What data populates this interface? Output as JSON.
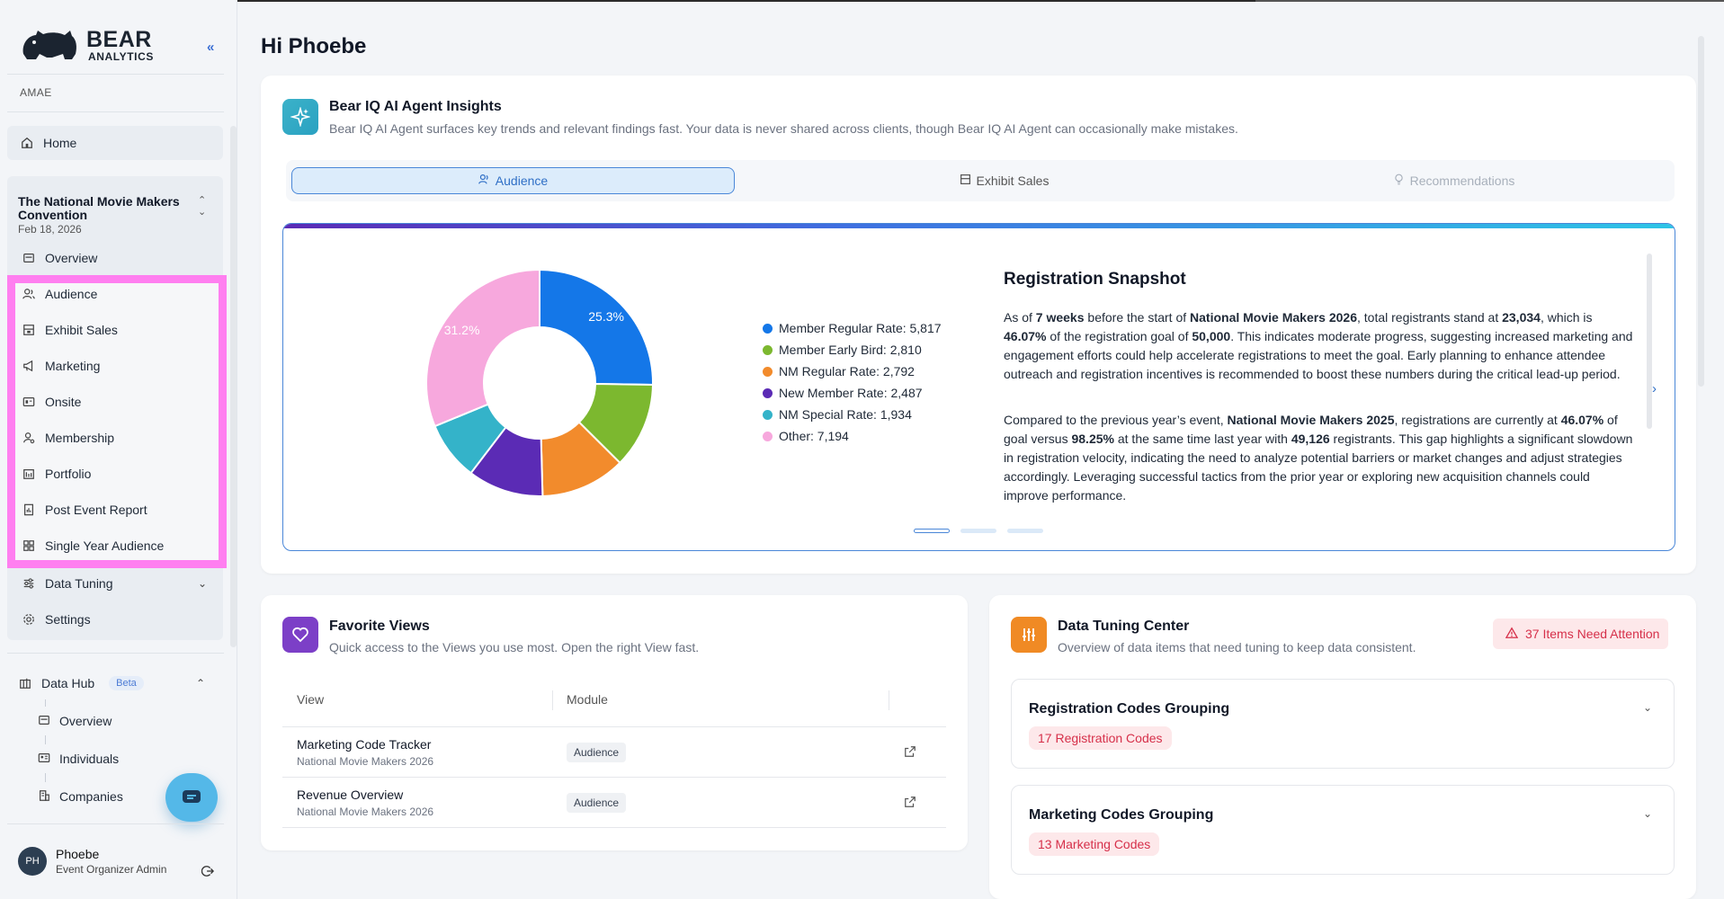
{
  "sidebar": {
    "logo_main": "BEAR",
    "logo_sub": "ANALYTICS",
    "org": "AMAE",
    "home": "Home",
    "event": {
      "title": "The National Movie Makers Convention",
      "date": "Feb 18, 2026"
    },
    "items": [
      {
        "label": "Overview",
        "icon": "overview-icon"
      },
      {
        "label": "Audience",
        "icon": "audience-icon"
      },
      {
        "label": "Exhibit Sales",
        "icon": "exhibit-icon"
      },
      {
        "label": "Marketing",
        "icon": "megaphone-icon"
      },
      {
        "label": "Onsite",
        "icon": "onsite-icon"
      },
      {
        "label": "Membership",
        "icon": "membership-icon"
      },
      {
        "label": "Portfolio",
        "icon": "portfolio-icon"
      },
      {
        "label": "Post Event Report",
        "icon": "report-icon"
      },
      {
        "label": "Single Year Audience",
        "icon": "grid-icon"
      },
      {
        "label": "Data Tuning",
        "icon": "sliders-icon"
      },
      {
        "label": "Settings",
        "icon": "gear-icon"
      }
    ],
    "datahub": {
      "label": "Data Hub",
      "badge": "Beta",
      "items": [
        {
          "label": "Overview"
        },
        {
          "label": "Individuals"
        },
        {
          "label": "Companies"
        }
      ]
    },
    "user": {
      "initials": "PH",
      "name": "Phoebe",
      "role": "Event Organizer Admin"
    }
  },
  "main": {
    "greeting": "Hi Phoebe",
    "ai": {
      "title": "Bear IQ AI Agent Insights",
      "subtitle": "Bear IQ AI Agent surfaces key trends and relevant findings fast. Your data is never shared across clients, though Bear IQ AI Agent can occasionally make mistakes.",
      "tabs": [
        "Audience",
        "Exhibit Sales",
        "Recommendations"
      ]
    },
    "snapshot": {
      "title": "Registration Snapshot",
      "p1": [
        {
          "t": "As of "
        },
        {
          "t": "7 weeks",
          "b": true
        },
        {
          "t": " before the start of "
        },
        {
          "t": "National Movie Makers 2026",
          "b": true
        },
        {
          "t": ", total registrants stand at "
        },
        {
          "t": "23,034",
          "b": true
        },
        {
          "t": ", which is "
        },
        {
          "t": "46.07%",
          "b": true
        },
        {
          "t": " of the registration goal of "
        },
        {
          "t": "50,000",
          "b": true
        },
        {
          "t": ". This indicates moderate progress, suggesting increased marketing and engagement efforts could help accelerate registrations to meet the goal. Early planning to enhance attendee outreach and registration incentives is recommended to boost these numbers during the critical lead-up period."
        }
      ],
      "p2": [
        {
          "t": "Compared to the previous year’s event, "
        },
        {
          "t": "National Movie Makers 2025",
          "b": true
        },
        {
          "t": ", registrations are currently at "
        },
        {
          "t": "46.07%",
          "b": true
        },
        {
          "t": " of goal versus "
        },
        {
          "t": "98.25%",
          "b": true
        },
        {
          "t": " at the same time last year with "
        },
        {
          "t": "49,126",
          "b": true
        },
        {
          "t": " registrants. This gap highlights a significant slowdown in registration velocity, indicating the need to analyze potential barriers or market changes and adjust strategies accordingly. Leveraging successful tactics from the prior year or exploring new acquisition channels could improve performance."
        }
      ],
      "pager_active_index": 0,
      "pager_count": 3
    },
    "favorites": {
      "title": "Favorite Views",
      "subtitle": "Quick access to the Views you use most. Open the right View fast.",
      "columns": [
        "View",
        "Module"
      ],
      "rows": [
        {
          "name": "Marketing Code Tracker",
          "event": "National Movie Makers 2026",
          "module": "Audience"
        },
        {
          "name": "Revenue Overview",
          "event": "National Movie Makers 2026",
          "module": "Audience"
        }
      ]
    },
    "tuning": {
      "title": "Data Tuning Center",
      "subtitle": "Overview of data items that need tuning to keep data consistent.",
      "alert": "37 Items Need Attention",
      "groups": [
        {
          "title": "Registration Codes Grouping",
          "badge": "17 Registration Codes"
        },
        {
          "title": "Marketing Codes Grouping",
          "badge": "13 Marketing Codes"
        }
      ]
    }
  },
  "chart_data": {
    "type": "pie",
    "categories": [
      "Member Regular Rate",
      "Member Early Bird",
      "NM Regular Rate",
      "New Member Rate",
      "NM Special Rate",
      "Other"
    ],
    "values": [
      5817,
      2810,
      2792,
      2487,
      1934,
      7194
    ],
    "legend": [
      "Member Regular Rate: 5,817",
      "Member Early Bird: 2,810",
      "NM Regular Rate: 2,792",
      "New Member Rate: 2,487",
      "NM Special Rate: 1,934",
      "Other: 7,194"
    ],
    "slice_labels": {
      "0": "25.3%",
      "5": "31.2%"
    },
    "colors": [
      "#1477e8",
      "#7cb82f",
      "#f28b2c",
      "#5b2bb5",
      "#34b3c9",
      "#f7a8dd"
    ],
    "legend_position": "right"
  }
}
